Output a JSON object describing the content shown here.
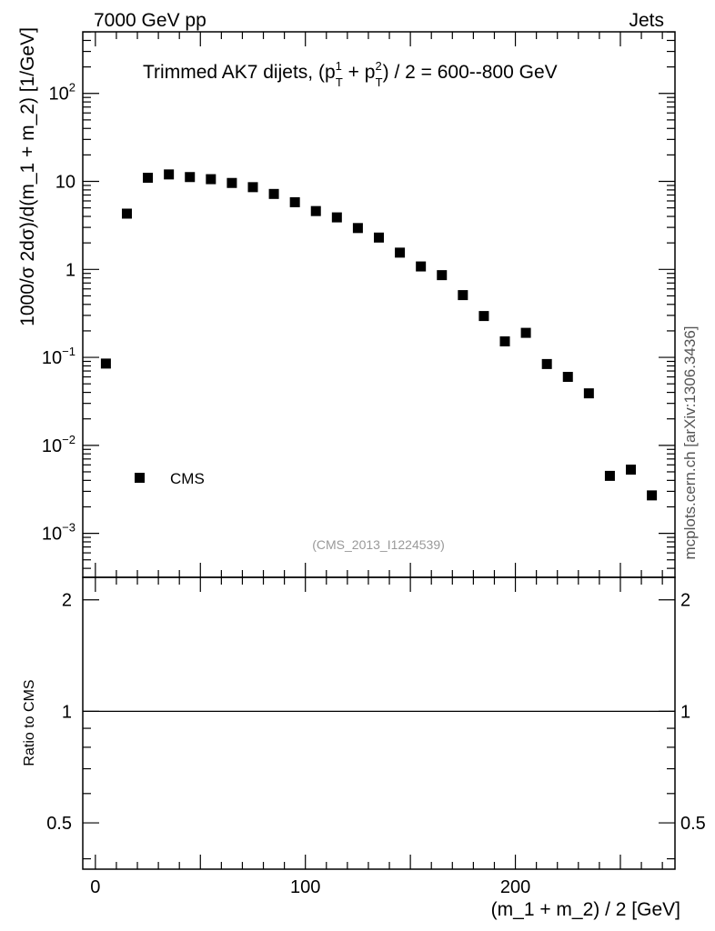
{
  "chart_data": {
    "type": "scatter",
    "header_left": "7000 GeV pp",
    "header_right": "Jets",
    "title": {
      "main": "Trimmed AK7 dijets, (p",
      "sup1": "1",
      "sub1": "T",
      "plus": " + p",
      "sup2": "2",
      "sub2": "T",
      "tail": ") / 2 = 600--800 GeV"
    },
    "ylabel": "1000/σ   2dσ)/d(m_1 + m_2) [1/GeV]",
    "xlabel": "(m_1 + m_2) / 2 [GeV]",
    "ratio_ylabel": "Ratio to CMS",
    "side_label": "mcplots.cern.ch [arXiv:1306.3436]",
    "analysis_id": "(CMS_2013_I1224539)",
    "legend": {
      "entry": "CMS",
      "marker": "square"
    },
    "xlim": [
      -6,
      276
    ],
    "ylim_log": [
      -3.5,
      2.7
    ],
    "ratio_ylim": [
      0.375,
      2.3
    ],
    "x_ticks": [
      {
        "value": 0,
        "label": "0"
      },
      {
        "value": 100,
        "label": "100"
      },
      {
        "value": 200,
        "label": "200"
      }
    ],
    "y_ticks_main": [
      {
        "exp": 2,
        "label_base": "10",
        "label_sup": "2"
      },
      {
        "exp": 1,
        "label_base": "10",
        "label_sup": ""
      },
      {
        "exp": 0,
        "label_base": "1",
        "label_sup": ""
      },
      {
        "exp": -1,
        "label_base": "10",
        "label_sup": "−1"
      },
      {
        "exp": -2,
        "label_base": "10",
        "label_sup": "−2"
      },
      {
        "exp": -3,
        "label_base": "10",
        "label_sup": "−3"
      }
    ],
    "y_ticks_ratio": [
      {
        "value": 2,
        "label": "2"
      },
      {
        "value": 1,
        "label": "1"
      },
      {
        "value": 0.5,
        "label": "0.5"
      }
    ],
    "series": [
      {
        "name": "CMS",
        "x": [
          5,
          15,
          25,
          35,
          45,
          55,
          65,
          75,
          85,
          95,
          105,
          115,
          125,
          135,
          145,
          155,
          165,
          175,
          185,
          195,
          205,
          215,
          225,
          235,
          245,
          255,
          265
        ],
        "y": [
          0.085,
          4.3,
          11.0,
          12.0,
          11.2,
          10.6,
          9.6,
          8.6,
          7.2,
          5.8,
          4.6,
          3.9,
          2.95,
          2.3,
          1.55,
          1.08,
          0.86,
          0.51,
          0.295,
          0.152,
          0.19,
          0.084,
          0.06,
          0.039,
          0.0045,
          0.0053,
          0.0027
        ]
      }
    ],
    "ratio_reference": 1
  }
}
